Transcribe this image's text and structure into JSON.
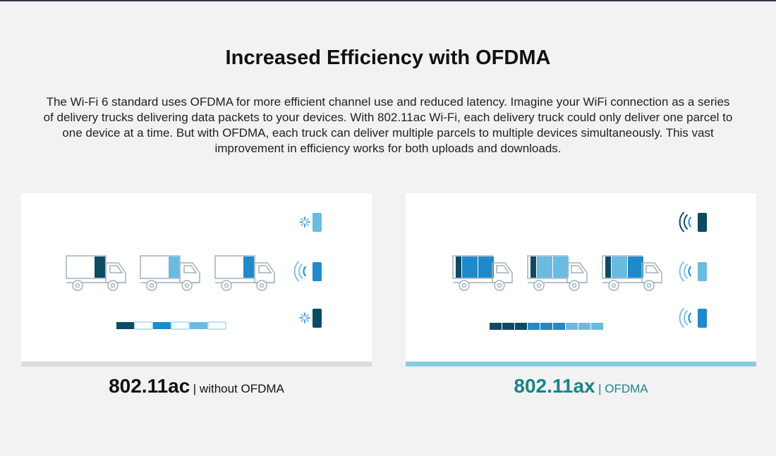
{
  "header": {
    "title": "Increased Efficiency with OFDMA",
    "description": "The Wi-Fi 6 standard uses OFDMA for more efficient channel use and reduced latency. Imagine your WiFi connection as a series of delivery trucks delivering data packets to your devices. With 802.11ac Wi-Fi, each delivery truck could only deliver one parcel to one device at a time. But with OFDMA, each truck can deliver multiple parcels to multiple devices simultaneously. This vast improvement in efficiency works for both uploads and downloads."
  },
  "colors": {
    "dark": "#0d4b63",
    "light": "#6bbae0",
    "mid": "#1e8acb",
    "truck": "#9fb2bb",
    "accent": "#1a8388",
    "wave": "#7ec4e4"
  },
  "left_panel": {
    "title": "802.11ac",
    "subtitle": "| without OFDMA",
    "trucks": [
      [
        "dark"
      ],
      [
        "light"
      ],
      [
        "mid"
      ]
    ],
    "queue": [
      "dark",
      "empty",
      "mid",
      "empty",
      "light",
      "empty"
    ],
    "devices": [
      {
        "color": "light",
        "signal": "loading-icon"
      },
      {
        "color": "mid",
        "signal": "wifi-signal-icon"
      },
      {
        "color": "dark",
        "signal": "loading-icon"
      }
    ]
  },
  "right_panel": {
    "title": "802.11ax",
    "subtitle": "| OFDMA",
    "trucks": [
      [
        "dark",
        "mid",
        "mid"
      ],
      [
        "dark",
        "light",
        "light"
      ],
      [
        "dark",
        "light",
        "mid"
      ]
    ],
    "queue": [
      "dark",
      "dark",
      "dark",
      "mid",
      "mid",
      "mid",
      "light",
      "light",
      "light"
    ],
    "devices": [
      {
        "color": "dark",
        "signal": "wifi-signal-icon"
      },
      {
        "color": "light",
        "signal": "wifi-signal-icon"
      },
      {
        "color": "mid",
        "signal": "wifi-signal-icon"
      }
    ]
  }
}
